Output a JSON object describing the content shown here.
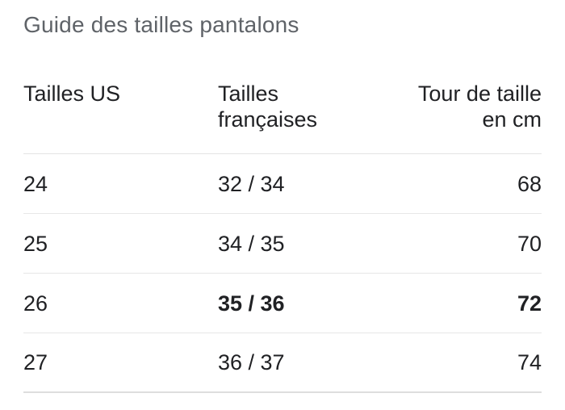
{
  "page": {
    "title": "Guide des tailles pantalons"
  },
  "table": {
    "columns": [
      {
        "line1": "Tailles US",
        "line2": ""
      },
      {
        "line1": "Tailles",
        "line2": "françaises"
      },
      {
        "line1": "Tour de taille",
        "line2": "en cm"
      }
    ],
    "rows": [
      {
        "us": "24",
        "fr": "32 / 34",
        "cm": "68",
        "highlighted": false
      },
      {
        "us": "25",
        "fr": "34 / 35",
        "cm": "70",
        "highlighted": false
      },
      {
        "us": "26",
        "fr": "35 / 36",
        "cm": "72",
        "highlighted": true
      },
      {
        "us": "27",
        "fr": "36 / 37",
        "cm": "74",
        "highlighted": false
      }
    ]
  },
  "colors": {
    "title_text": "#5f6368",
    "table_text": "#202124",
    "divider": "#e4e4e4",
    "background": "#ffffff"
  }
}
